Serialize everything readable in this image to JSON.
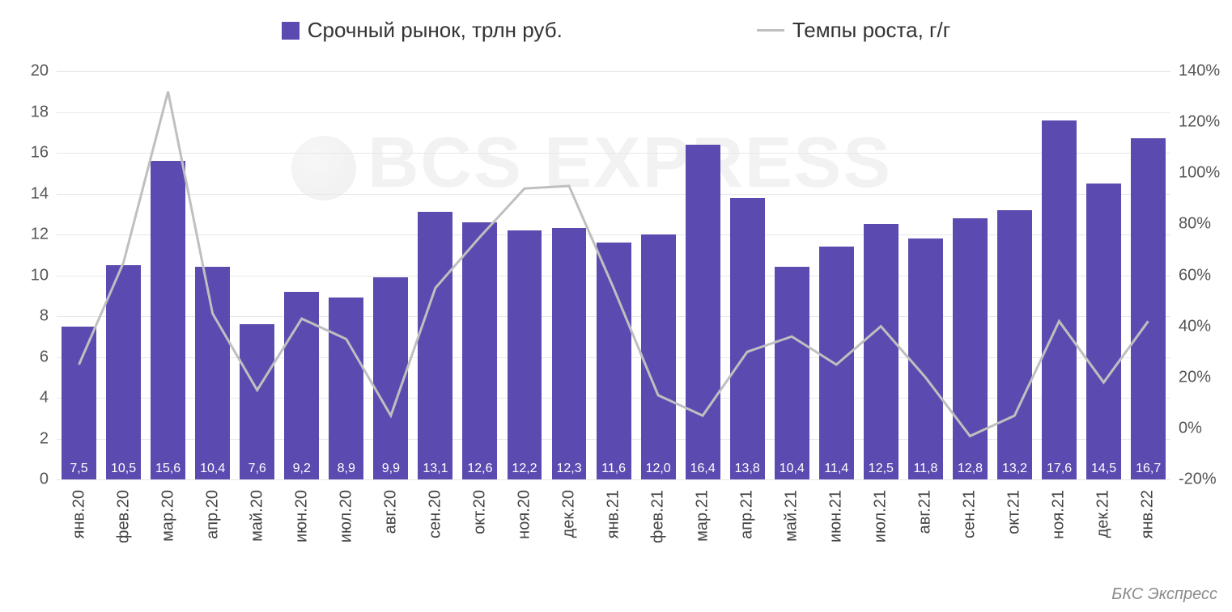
{
  "chart": {
    "type": "bar+line",
    "background_color": "#ffffff",
    "grid_color": "#e8e8e8",
    "bar_color": "#5b4bb0",
    "bar_value_color": "#ffffff",
    "line_color": "#bfbfbf",
    "line_width": 3,
    "bar_width_ratio": 0.78,
    "axis_label_color": "#555555",
    "axis_label_fontsize": 20,
    "legend_fontsize": 26,
    "value_label_fontsize": 16,
    "legend": {
      "bar_label": "Срочный рынок, трлн руб.",
      "line_label": "Темпы роста, г/г"
    },
    "y_left": {
      "min": 0,
      "max": 20,
      "step": 2,
      "labels": [
        "0",
        "2",
        "4",
        "6",
        "8",
        "10",
        "12",
        "14",
        "16",
        "18",
        "20"
      ]
    },
    "y_right": {
      "min": -20,
      "max": 140,
      "step": 20,
      "labels": [
        "-20%",
        "0%",
        "20%",
        "40%",
        "60%",
        "80%",
        "100%",
        "120%",
        "140%"
      ]
    },
    "categories": [
      "янв.20",
      "фев.20",
      "мар.20",
      "апр.20",
      "май.20",
      "июн.20",
      "июл.20",
      "авг.20",
      "сен.20",
      "окт.20",
      "ноя.20",
      "дек.20",
      "янв.21",
      "фев.21",
      "мар.21",
      "апр.21",
      "май.21",
      "июн.21",
      "июл.21",
      "авг.21",
      "сен.21",
      "окт.21",
      "ноя.21",
      "дек.21",
      "янв.22"
    ],
    "bar_values": [
      7.5,
      10.5,
      15.6,
      10.4,
      7.6,
      9.2,
      8.9,
      9.9,
      13.1,
      12.6,
      12.2,
      12.3,
      11.6,
      12.0,
      16.4,
      13.8,
      10.4,
      11.4,
      12.5,
      11.8,
      12.8,
      13.2,
      17.6,
      14.5,
      16.7
    ],
    "bar_value_labels": [
      "7,5",
      "10,5",
      "15,6",
      "10,4",
      "7,6",
      "9,2",
      "8,9",
      "9,9",
      "13,1",
      "12,6",
      "12,2",
      "12,3",
      "11,6",
      "12,0",
      "16,4",
      "13,8",
      "10,4",
      "11,4",
      "12,5",
      "11,8",
      "12,8",
      "13,2",
      "17,6",
      "14,5",
      "16,7"
    ],
    "line_values_pct": [
      25,
      65,
      132,
      45,
      15,
      43,
      35,
      5,
      55,
      75,
      94,
      95,
      55,
      13,
      5,
      30,
      36,
      25,
      40,
      20,
      -3,
      5,
      42,
      18,
      42
    ],
    "watermark_text": "BCS EXPRESS",
    "attribution": "БКС Экспресс"
  }
}
